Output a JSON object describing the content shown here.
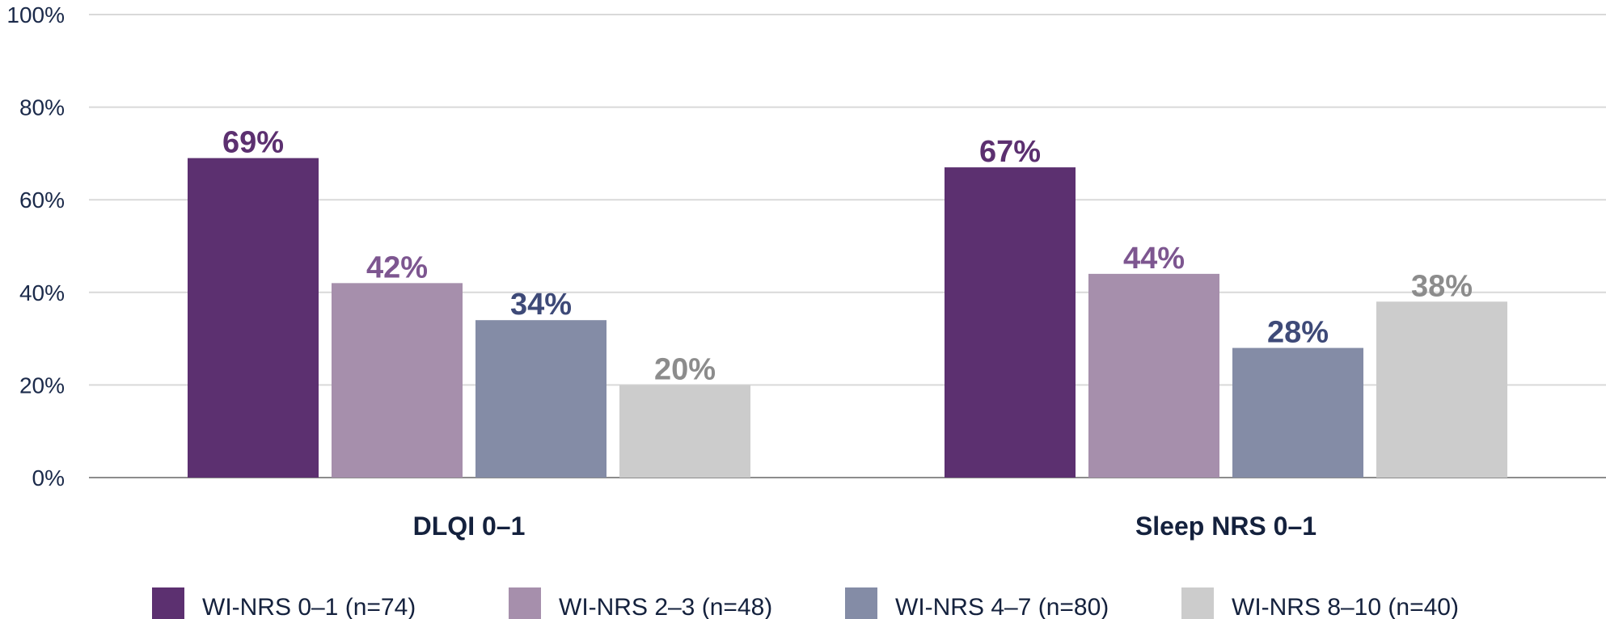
{
  "chart_data": {
    "type": "bar",
    "title": "",
    "xlabel": "",
    "ylabel": "",
    "ylim": [
      0,
      100
    ],
    "y_ticks": [
      "0%",
      "20%",
      "40%",
      "60%",
      "80%",
      "100%"
    ],
    "y_tick_values": [
      0,
      20,
      40,
      60,
      80,
      100
    ],
    "grid": true,
    "legend_position": "bottom",
    "categories": [
      "DLQI 0–1",
      "Sleep NRS 0–1"
    ],
    "series": [
      {
        "name": "WI-NRS 0–1 (n=74)",
        "color": "#5c3070",
        "label_color": "#5c3070",
        "values": [
          69,
          67
        ],
        "labels": [
          "69%",
          "67%"
        ]
      },
      {
        "name": "WI-NRS 2–3 (n=48)",
        "color": "#a68fac",
        "label_color": "#7d5690",
        "values": [
          42,
          44
        ],
        "labels": [
          "42%",
          "44%"
        ]
      },
      {
        "name": "WI-NRS 4–7 (n=80)",
        "color": "#848ca6",
        "label_color": "#3e4a78",
        "values": [
          34,
          28
        ],
        "labels": [
          "34%",
          "28%"
        ]
      },
      {
        "name": "WI-NRS 8–10 (n=40)",
        "color": "#cccccc",
        "label_color": "#8c8c8c",
        "values": [
          20,
          38
        ],
        "labels": [
          "20%",
          "38%"
        ]
      }
    ]
  }
}
